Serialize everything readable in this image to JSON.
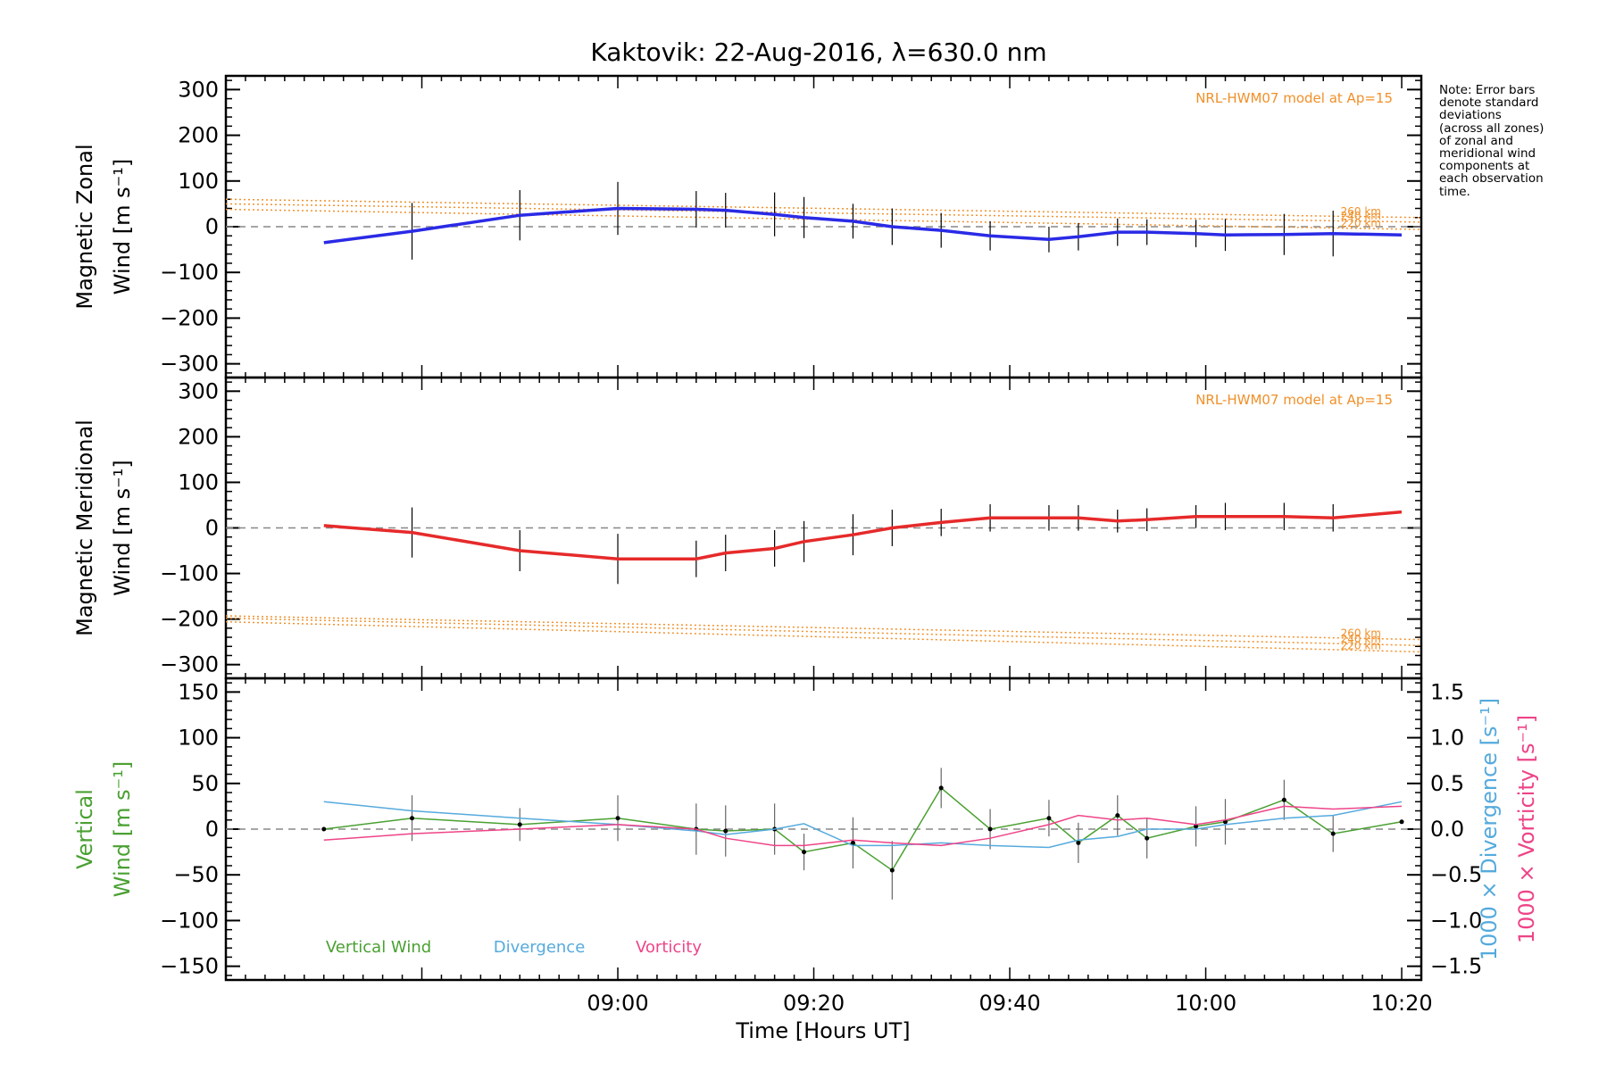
{
  "title": "Kaktovik: 22-Aug-2016, λ=630.0 nm",
  "note": "Note: Error bars\ndenote standard\ndeviations\n(across all zones)\nof zonal and\nmeridional wind\ncomponents at\neach observation\ntime.",
  "colors": {
    "zonal": "#2a2ae6",
    "meridional": "#e62a2a",
    "model": "#f0902a",
    "vertical": "#4aa032",
    "divergence": "#55aadd",
    "vorticity": "#ee4488",
    "errorbar": "#000000",
    "zero": "#888888"
  },
  "chart_data": [
    {
      "type": "line",
      "panel": "zonal",
      "ylabel_line1": "Magnetic Zonal",
      "ylabel_line2": "Wind [m s⁻¹]",
      "ylim": [
        -330,
        330
      ],
      "yticks": [
        300,
        200,
        100,
        0,
        -100,
        -200,
        -300
      ],
      "model_label": "NRL-HWM07 model at Ap=15",
      "x": [
        "08:30",
        "08:39",
        "08:50",
        "09:00",
        "09:08",
        "09:11",
        "09:16",
        "09:19",
        "09:24",
        "09:28",
        "09:33",
        "09:38",
        "09:44",
        "09:47",
        "09:51",
        "09:54",
        "09:59",
        "10:02",
        "10:08",
        "10:13",
        "10:20"
      ],
      "series": [
        {
          "values": [
            -35,
            -10,
            25,
            40,
            38,
            36,
            27,
            20,
            12,
            0,
            -8,
            -20,
            -28,
            -22,
            -12,
            -12,
            -15,
            -18,
            -17,
            -15,
            -18
          ]
        }
      ],
      "error": [
        0,
        62,
        55,
        58,
        40,
        38,
        48,
        45,
        38,
        40,
        38,
        32,
        28,
        30,
        30,
        28,
        30,
        35,
        45,
        50,
        0
      ],
      "model_lines": [
        {
          "label": "260 km",
          "values": [
            60,
            20
          ]
        },
        {
          "label": "240 km",
          "values": [
            50,
            10
          ]
        },
        {
          "label": "220 km",
          "values": [
            38,
            -6
          ]
        }
      ]
    },
    {
      "type": "line",
      "panel": "meridional",
      "ylabel_line1": "Magnetic Meridional",
      "ylabel_line2": "Wind [m s⁻¹]",
      "ylim": [
        -330,
        330
      ],
      "yticks": [
        300,
        200,
        100,
        0,
        -100,
        -200,
        -300
      ],
      "model_label": "NRL-HWM07 model at Ap=15",
      "x": [
        "08:30",
        "08:39",
        "08:50",
        "09:00",
        "09:08",
        "09:11",
        "09:16",
        "09:19",
        "09:24",
        "09:28",
        "09:33",
        "09:38",
        "09:44",
        "09:47",
        "09:51",
        "09:54",
        "09:59",
        "10:02",
        "10:08",
        "10:13",
        "10:20"
      ],
      "series": [
        {
          "values": [
            5,
            -10,
            -50,
            -68,
            -68,
            -55,
            -45,
            -30,
            -15,
            0,
            12,
            22,
            22,
            22,
            15,
            18,
            25,
            25,
            25,
            22,
            35
          ]
        }
      ],
      "error": [
        0,
        55,
        45,
        55,
        40,
        40,
        40,
        45,
        45,
        40,
        30,
        30,
        28,
        28,
        25,
        25,
        25,
        30,
        30,
        30,
        0
      ],
      "model_lines": [
        {
          "label": "260 km",
          "values": [
            -193,
            -245
          ]
        },
        {
          "label": "240 km",
          "values": [
            -198,
            -258
          ]
        },
        {
          "label": "220 km",
          "values": [
            -206,
            -272
          ]
        }
      ]
    },
    {
      "type": "line",
      "panel": "vertical",
      "ylabel_line1": "Vertical",
      "ylabel_line2": "Wind [m s⁻¹]",
      "ylabel_right1": "1000 × Divergence [s⁻¹]",
      "ylabel_right2": "1000 × Vorticity [s⁻¹]",
      "ylim": [
        -165,
        165
      ],
      "yticks": [
        150,
        100,
        50,
        0,
        -50,
        -100,
        -150
      ],
      "y2lim": [
        -1.65,
        1.65
      ],
      "y2ticks": [
        "1.5",
        "1.0",
        "0.5",
        "0.0",
        "−0.5",
        "−1.0",
        "−1.5"
      ],
      "xlabel": "Time [Hours UT]",
      "xticks": [
        "09:00",
        "09:20",
        "09:40",
        "10:00",
        "10:20"
      ],
      "legend": [
        "Vertical Wind",
        "Divergence",
        "Vorticity"
      ],
      "x": [
        "08:30",
        "08:39",
        "08:50",
        "09:00",
        "09:08",
        "09:11",
        "09:16",
        "09:19",
        "09:24",
        "09:28",
        "09:33",
        "09:38",
        "09:44",
        "09:47",
        "09:51",
        "09:54",
        "09:59",
        "10:02",
        "10:08",
        "10:13",
        "10:20"
      ],
      "series": [
        {
          "name": "Vertical Wind",
          "axis": "left",
          "values": [
            0,
            12,
            5,
            12,
            0,
            -2,
            0,
            -25,
            -15,
            -45,
            45,
            0,
            12,
            -15,
            15,
            -10,
            3,
            8,
            32,
            -5,
            8
          ]
        },
        {
          "name": "Divergence",
          "axis": "right",
          "values": [
            0.3,
            0.2,
            0.12,
            0.05,
            -0.02,
            -0.06,
            0.0,
            0.06,
            -0.18,
            -0.18,
            -0.15,
            -0.18,
            -0.2,
            -0.12,
            -0.08,
            0.0,
            0.0,
            0.05,
            0.12,
            0.15,
            0.3
          ]
        },
        {
          "name": "Vorticity",
          "axis": "right",
          "values": [
            -0.12,
            -0.05,
            0.0,
            0.05,
            0.0,
            -0.1,
            -0.18,
            -0.18,
            -0.12,
            -0.15,
            -0.18,
            -0.1,
            0.05,
            0.15,
            0.1,
            0.12,
            0.05,
            0.1,
            0.25,
            0.22,
            0.25
          ]
        }
      ],
      "error": [
        0,
        25,
        18,
        25,
        28,
        28,
        28,
        20,
        28,
        32,
        22,
        22,
        20,
        22,
        22,
        22,
        22,
        25,
        22,
        20,
        0
      ]
    }
  ]
}
